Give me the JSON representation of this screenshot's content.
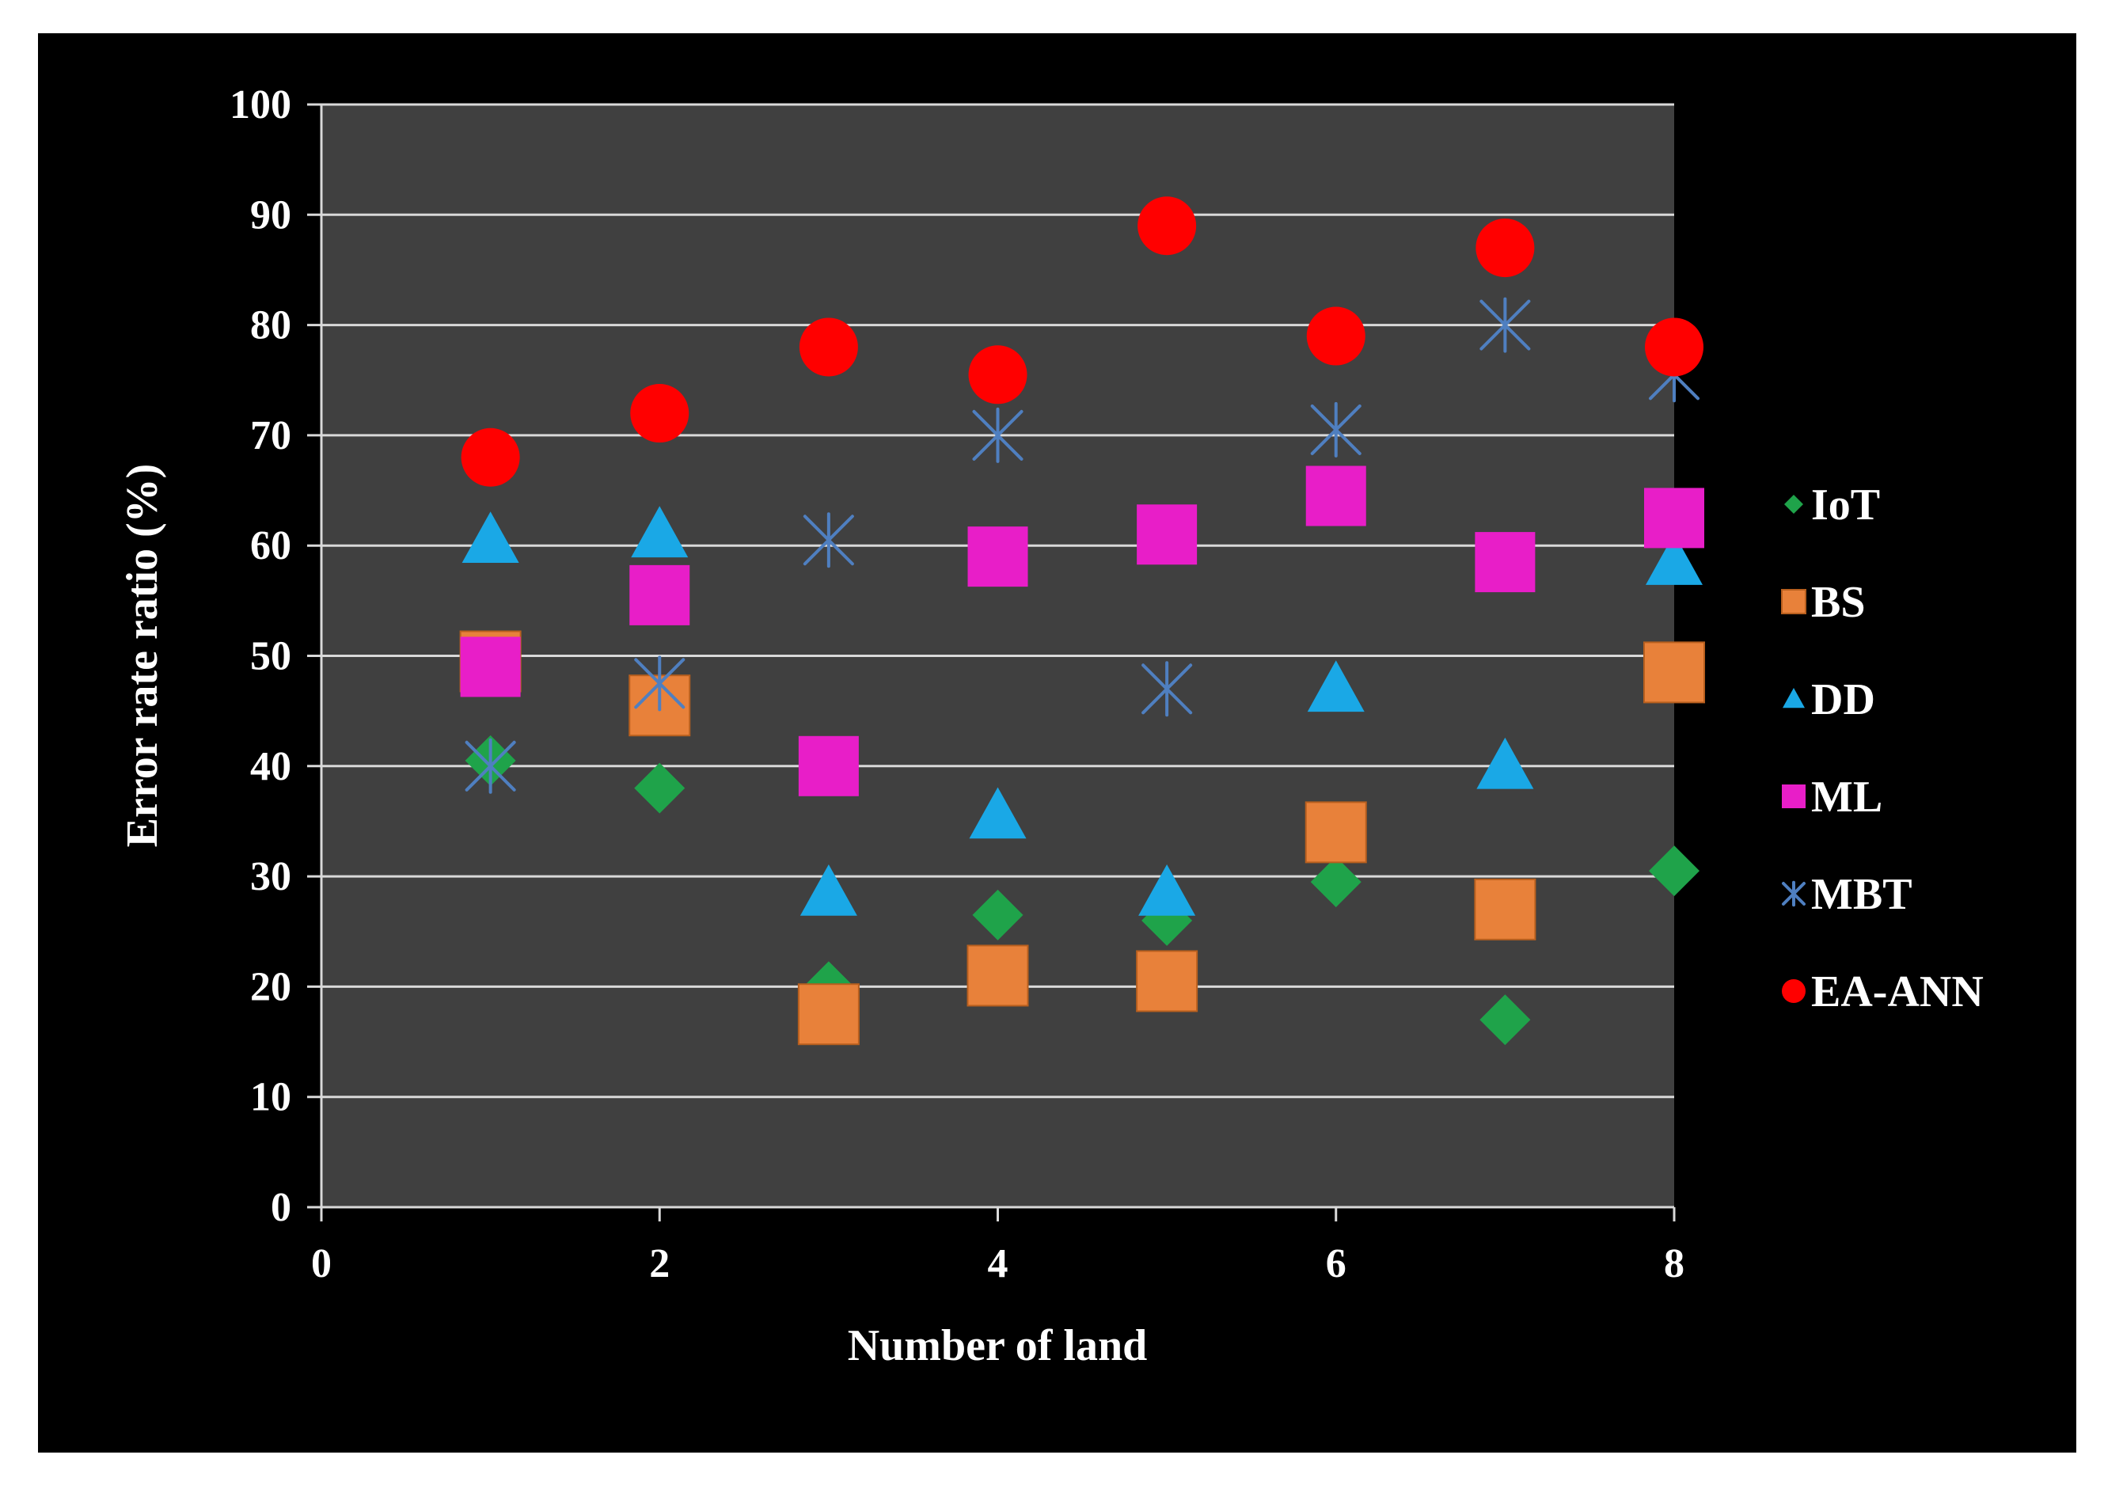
{
  "chart_data": {
    "type": "scatter",
    "title": "",
    "xlabel": "Number of land",
    "ylabel": "Error rate ratio (%)",
    "xlim": [
      0,
      8
    ],
    "ylim": [
      0,
      100
    ],
    "xticks": [
      0,
      2,
      4,
      6,
      8
    ],
    "yticks": [
      0,
      10,
      20,
      30,
      40,
      50,
      60,
      70,
      80,
      90,
      100
    ],
    "grid": "horizontal",
    "legend_position": "right",
    "plot_background": "#404040",
    "figure_background": "#000000",
    "series": [
      {
        "name": "IoT",
        "marker": "diamond",
        "color": "#1fa34a",
        "x": [
          1,
          2,
          3,
          4,
          5,
          6,
          7,
          8
        ],
        "y": [
          40.5,
          38,
          20,
          26.5,
          26,
          29.5,
          17,
          30.5
        ]
      },
      {
        "name": "BS",
        "marker": "square",
        "color": "#e8813a",
        "x": [
          1,
          2,
          3,
          4,
          5,
          6,
          7,
          8
        ],
        "y": [
          49.5,
          45.5,
          17.5,
          21,
          20.5,
          34,
          27,
          48.5
        ]
      },
      {
        "name": "DD",
        "marker": "triangle",
        "color": "#1aa8e6",
        "x": [
          1,
          2,
          3,
          4,
          5,
          6,
          7,
          8
        ],
        "y": [
          60.5,
          61,
          28.5,
          35.5,
          28.5,
          47,
          40,
          58.5
        ]
      },
      {
        "name": "ML",
        "marker": "square",
        "color": "#e81ec8",
        "x": [
          1,
          2,
          3,
          4,
          5,
          6,
          7,
          8
        ],
        "y": [
          49,
          55.5,
          40,
          59,
          61,
          64.5,
          58.5,
          62.5
        ]
      },
      {
        "name": "MBT",
        "marker": "asterisk",
        "color": "#4f7fc0",
        "x": [
          1,
          2,
          3,
          4,
          5,
          6,
          7,
          8
        ],
        "y": [
          40,
          47.5,
          60.5,
          70,
          47,
          70.5,
          80,
          75.5
        ]
      },
      {
        "name": "EA-ANN",
        "marker": "circle",
        "color": "#ff0000",
        "x": [
          1,
          2,
          3,
          4,
          5,
          6,
          7,
          8
        ],
        "y": [
          68,
          72,
          78,
          75.5,
          89,
          79,
          87,
          78
        ]
      }
    ]
  }
}
